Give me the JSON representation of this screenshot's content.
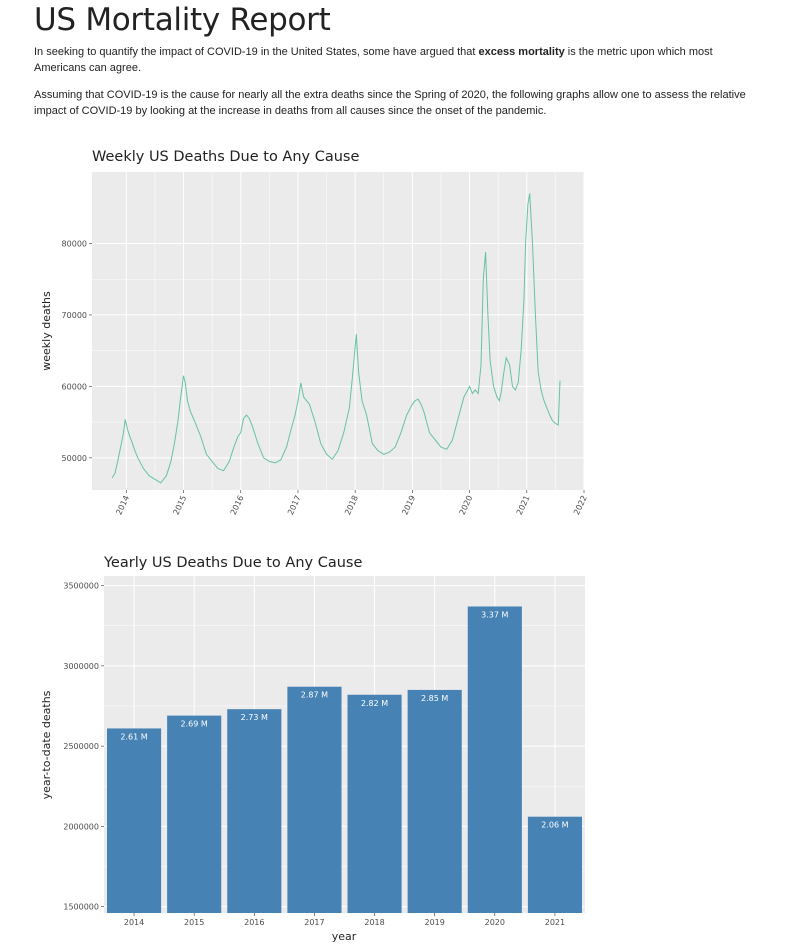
{
  "page": {
    "title": "US Mortality Report",
    "intro_1_pre": "In seeking to quantify the impact of COVID-19 in the United States, some have argued that ",
    "intro_1_bold": "excess mortality",
    "intro_1_post": " is the metric upon which most Americans can agree.",
    "intro_2": "Assuming that COVID-19 is the cause for nearly all the extra deaths since the Spring of 2020, the following graphs allow one to assess the relative impact of COVID-19 by looking at the increase in deaths from all causes since the onset of the pandemic."
  },
  "colors": {
    "panel": "#ebebeb",
    "grid": "#ffffff",
    "line": "#66c2a5",
    "bar": "#4682b4"
  },
  "chart_data": [
    {
      "type": "line",
      "title": "Weekly US Deaths Due to Any Cause",
      "xlabel": "",
      "ylabel": "weekly deaths",
      "xlim": [
        2013.4,
        2022.0
      ],
      "ylim": [
        45500,
        90000
      ],
      "x_ticks": [
        "2014",
        "2015",
        "2016",
        "2017",
        "2018",
        "2019",
        "2020",
        "2021",
        "2022"
      ],
      "y_ticks": [
        "50000",
        "60000",
        "70000",
        "80000"
      ],
      "x_tick_values": [
        2014,
        2015,
        2016,
        2017,
        2018,
        2019,
        2020,
        2021,
        2022
      ],
      "y_tick_values": [
        50000,
        60000,
        70000,
        80000
      ],
      "series": [
        {
          "name": "weekly deaths",
          "x": [
            2013.75,
            2013.8,
            2013.85,
            2013.9,
            2013.95,
            2013.98,
            2014.02,
            2014.06,
            2014.1,
            2014.15,
            2014.2,
            2014.3,
            2014.4,
            2014.5,
            2014.6,
            2014.7,
            2014.78,
            2014.84,
            2014.9,
            2014.95,
            2015.0,
            2015.03,
            2015.07,
            2015.12,
            2015.2,
            2015.3,
            2015.4,
            2015.5,
            2015.6,
            2015.7,
            2015.8,
            2015.88,
            2015.95,
            2016.0,
            2016.05,
            2016.1,
            2016.15,
            2016.2,
            2016.3,
            2016.4,
            2016.5,
            2016.6,
            2016.7,
            2016.8,
            2016.88,
            2016.95,
            2017.0,
            2017.05,
            2017.1,
            2017.2,
            2017.3,
            2017.4,
            2017.5,
            2017.6,
            2017.7,
            2017.8,
            2017.9,
            2017.96,
            2018.02,
            2018.06,
            2018.12,
            2018.2,
            2018.3,
            2018.4,
            2018.5,
            2018.6,
            2018.7,
            2018.8,
            2018.9,
            2019.0,
            2019.05,
            2019.1,
            2019.15,
            2019.2,
            2019.3,
            2019.4,
            2019.5,
            2019.6,
            2019.7,
            2019.8,
            2019.9,
            2020.0,
            2020.05,
            2020.1,
            2020.15,
            2020.2,
            2020.24,
            2020.28,
            2020.32,
            2020.36,
            2020.42,
            2020.48,
            2020.52,
            2020.55,
            2020.6,
            2020.64,
            2020.7,
            2020.75,
            2020.8,
            2020.85,
            2020.9,
            2020.95,
            2020.98,
            2021.02,
            2021.05,
            2021.1,
            2021.15,
            2021.2,
            2021.25,
            2021.3,
            2021.35,
            2021.4,
            2021.45,
            2021.5,
            2021.55,
            2021.58
          ],
          "values": [
            47200,
            47800,
            49500,
            51500,
            53500,
            55400,
            54000,
            53000,
            52200,
            51000,
            50000,
            48500,
            47500,
            47000,
            46500,
            47500,
            49500,
            52000,
            55000,
            58500,
            61500,
            60500,
            58000,
            56500,
            55000,
            53000,
            50500,
            49500,
            48500,
            48200,
            49500,
            51500,
            53000,
            53500,
            55500,
            56000,
            55500,
            54500,
            52000,
            50000,
            49500,
            49300,
            49700,
            51500,
            54000,
            56000,
            58000,
            60500,
            58500,
            57500,
            55000,
            52000,
            50500,
            49800,
            51000,
            53500,
            57000,
            62000,
            67300,
            62000,
            58000,
            56000,
            52000,
            51000,
            50500,
            50800,
            51500,
            53500,
            56000,
            57500,
            58000,
            58200,
            57500,
            56500,
            53500,
            52500,
            51500,
            51200,
            52500,
            55500,
            58500,
            60000,
            59000,
            59500,
            59000,
            63000,
            75000,
            78800,
            70000,
            63500,
            60000,
            58500,
            58000,
            59000,
            62000,
            64000,
            63000,
            60000,
            59500,
            60500,
            65000,
            72000,
            80000,
            85500,
            87000,
            80000,
            70000,
            62000,
            59500,
            58000,
            57000,
            56000,
            55200,
            54800,
            54600,
            60800
          ]
        }
      ]
    },
    {
      "type": "bar",
      "title": "Yearly US Deaths Due to Any Cause",
      "xlabel": "year",
      "ylabel": "year-to-date deaths",
      "ylim": [
        1460000,
        3560000
      ],
      "y_ticks": [
        "1500000",
        "2000000",
        "2500000",
        "3000000",
        "3500000"
      ],
      "y_tick_values": [
        1500000,
        2000000,
        2500000,
        3000000,
        3500000
      ],
      "categories": [
        "2014",
        "2015",
        "2016",
        "2017",
        "2018",
        "2019",
        "2020",
        "2021"
      ],
      "values": [
        2610000,
        2690000,
        2730000,
        2870000,
        2820000,
        2850000,
        3370000,
        2060000
      ],
      "data_labels": [
        "2.61 M",
        "2.69 M",
        "2.73 M",
        "2.87 M",
        "2.82 M",
        "2.85 M",
        "3.37 M",
        "2.06 M"
      ]
    }
  ]
}
